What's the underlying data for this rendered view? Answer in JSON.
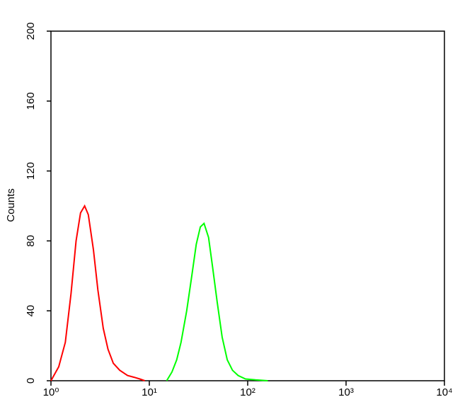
{
  "chart_data": {
    "type": "line",
    "y_label": "Counts",
    "xscale": "log",
    "xlim": [
      1,
      10000
    ],
    "xticks": [
      {
        "value": 1,
        "label": "10⁰"
      },
      {
        "value": 10,
        "label": "10¹"
      },
      {
        "value": 100,
        "label": "10²"
      },
      {
        "value": 1000,
        "label": "10³"
      },
      {
        "value": 10000,
        "label": "10⁴"
      }
    ],
    "ylim": [
      0,
      200
    ],
    "yticks": [
      0,
      40,
      80,
      120,
      160,
      200
    ],
    "series": [
      {
        "color": "#ff0000",
        "x": [
          1,
          1.2,
          1.4,
          1.6,
          1.8,
          2.0,
          2.2,
          2.4,
          2.7,
          3.0,
          3.4,
          3.8,
          4.3,
          5,
          6,
          7,
          8,
          9
        ],
        "values": [
          0,
          8,
          22,
          50,
          80,
          96,
          100,
          95,
          75,
          52,
          30,
          18,
          10,
          6,
          3,
          2,
          1,
          0
        ]
      },
      {
        "color": "#00ff00",
        "x": [
          15,
          17,
          19,
          21,
          24,
          27,
          30,
          33,
          36,
          40,
          44,
          49,
          55,
          62,
          70,
          80,
          95,
          120,
          160
        ],
        "values": [
          0,
          5,
          12,
          22,
          40,
          60,
          78,
          88,
          90,
          82,
          65,
          45,
          25,
          12,
          6,
          3,
          1,
          0.5,
          0
        ]
      }
    ]
  }
}
